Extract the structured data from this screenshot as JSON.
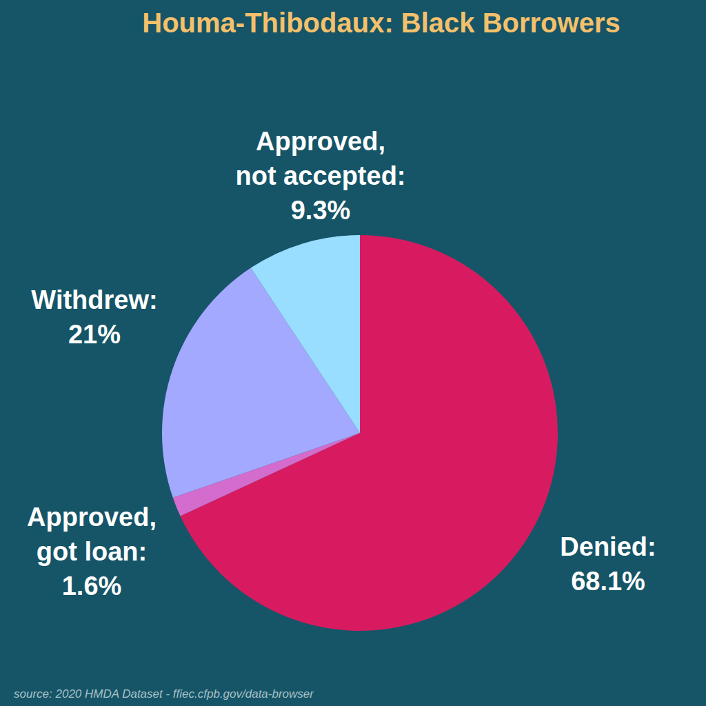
{
  "chart_data": {
    "type": "pie",
    "title": "Houma-Thibodaux: Black Borrowers",
    "categories": [
      "Denied:",
      "Approved, got loan:",
      "Withdrew:",
      "Approved, not accepted:"
    ],
    "values": [
      68.1,
      1.6,
      21,
      9.3
    ],
    "value_labels": [
      "68.1%",
      "1.6%",
      "21%",
      "9.3%"
    ],
    "colors": [
      "#d81b60",
      "#d36ccc",
      "#a3a9ff",
      "#99ddff"
    ],
    "data_labels": true,
    "legend": false,
    "source": "source: 2020 HMDA Dataset - ffiec.cfpb.gov/data-browser"
  }
}
